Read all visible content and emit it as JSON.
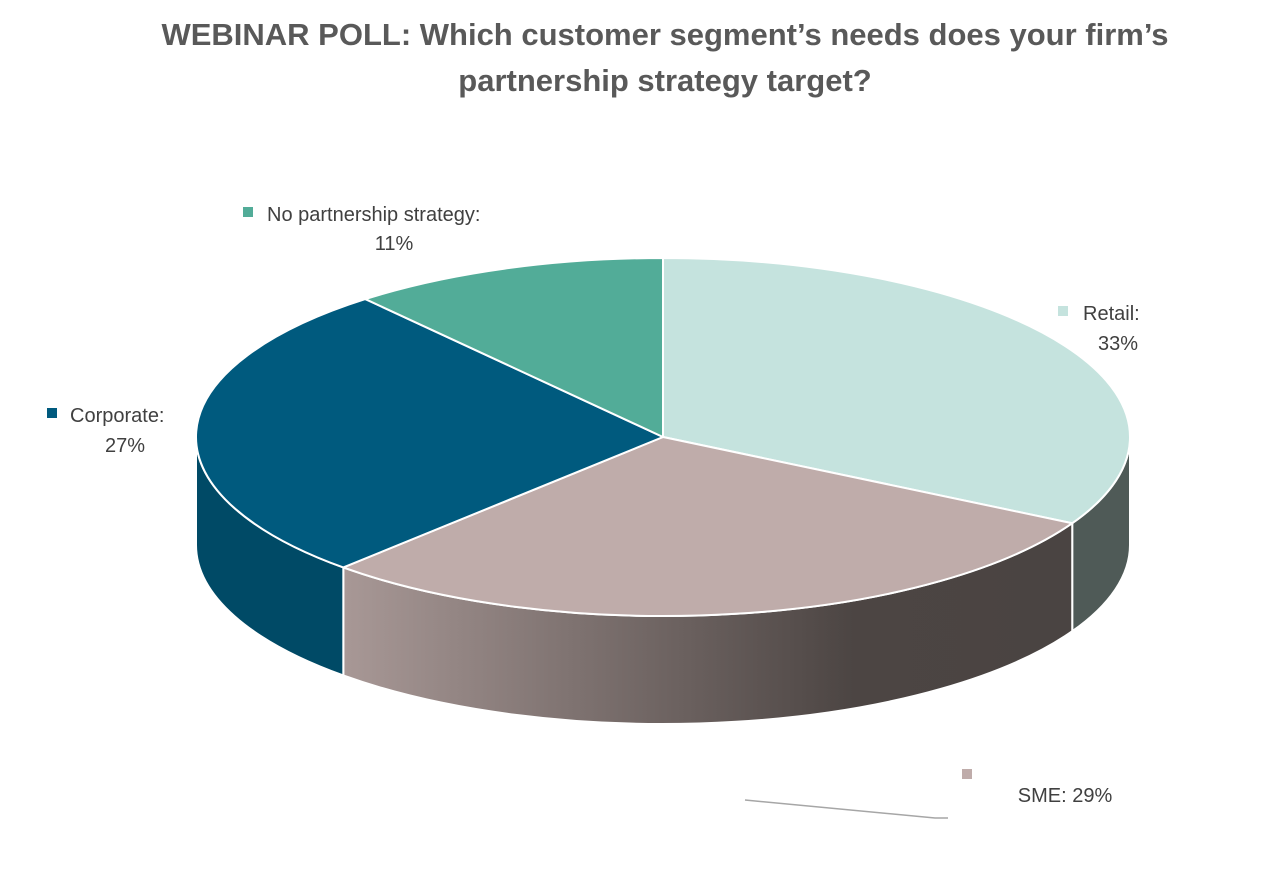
{
  "chart_data": {
    "type": "pie",
    "title_lines": [
      "WEBINAR POLL: Which customer segment’s needs does your firm’s",
      "partnership strategy target?"
    ],
    "slices": [
      {
        "name": "Retail",
        "value": 33,
        "label_line1": "Retail:",
        "label_line2": "33%",
        "color": "#c5e3de",
        "side_color": "#4f5a57"
      },
      {
        "name": "SME",
        "value": 29,
        "label_line1": "SME: 29%",
        "label_line2": "",
        "color": "#bfacaa",
        "side_color": "#4a4442"
      },
      {
        "name": "Corporate",
        "value": 27,
        "label_line1": "Corporate:",
        "label_line2": "27%",
        "color": "#005a7e",
        "side_color": "#004a66"
      },
      {
        "name": "No partnership strategy",
        "value": 11,
        "label_line1": "No partnership strategy:",
        "label_line2": "11%",
        "color": "#52ac98",
        "side_color": "#3d8a78"
      }
    ],
    "start": "12 o'clock",
    "direction": "clockwise",
    "legend": "none",
    "style": "3d"
  }
}
